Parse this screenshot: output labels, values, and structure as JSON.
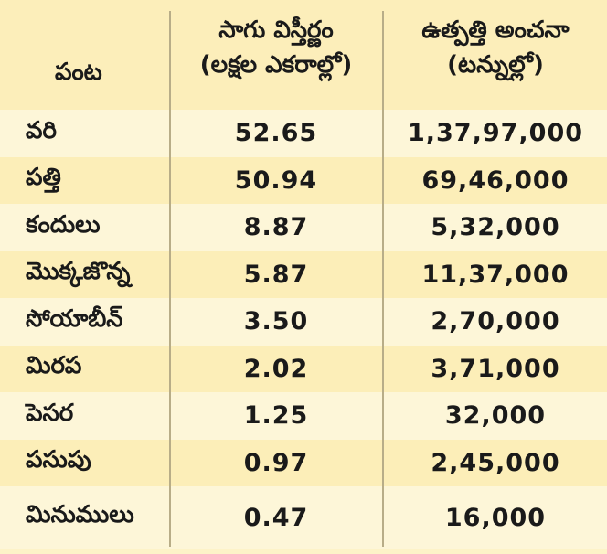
{
  "table": {
    "headers": {
      "crop": "పంట",
      "area_line1": "సాగు విస్తీర్ణం",
      "area_line2": "(లక్షల ఎకరాల్లో)",
      "production_line1": "ఉత్పత్తి అంచనా",
      "production_line2": "(టన్నుల్లో)"
    },
    "rows": [
      {
        "crop": "వరి",
        "area": "52.65",
        "production": "1,37,97,000"
      },
      {
        "crop": "పత్తి",
        "area": "50.94",
        "production": "69,46,000"
      },
      {
        "crop": "కందులు",
        "area": "8.87",
        "production": "5,32,000"
      },
      {
        "crop": "మొక్కజొన్న",
        "area": "5.87",
        "production": "11,37,000"
      },
      {
        "crop": "సోయాబీన్",
        "area": "3.50",
        "production": "2,70,000"
      },
      {
        "crop": "మిరప",
        "area": "2.02",
        "production": "3,71,000"
      },
      {
        "crop": "పెసర",
        "area": "1.25",
        "production": "32,000"
      },
      {
        "crop": "పసుపు",
        "area": "0.97",
        "production": "2,45,000"
      },
      {
        "crop": "మినుములు",
        "area": "0.47",
        "production": "16,000"
      }
    ]
  },
  "colors": {
    "background": "#fdf3c8",
    "header_bg": "#fceeba",
    "row_light": "#fdf6d8",
    "row_dark": "#fceeb8",
    "divider": "#b8ad88",
    "text": "#1a1a1a"
  }
}
